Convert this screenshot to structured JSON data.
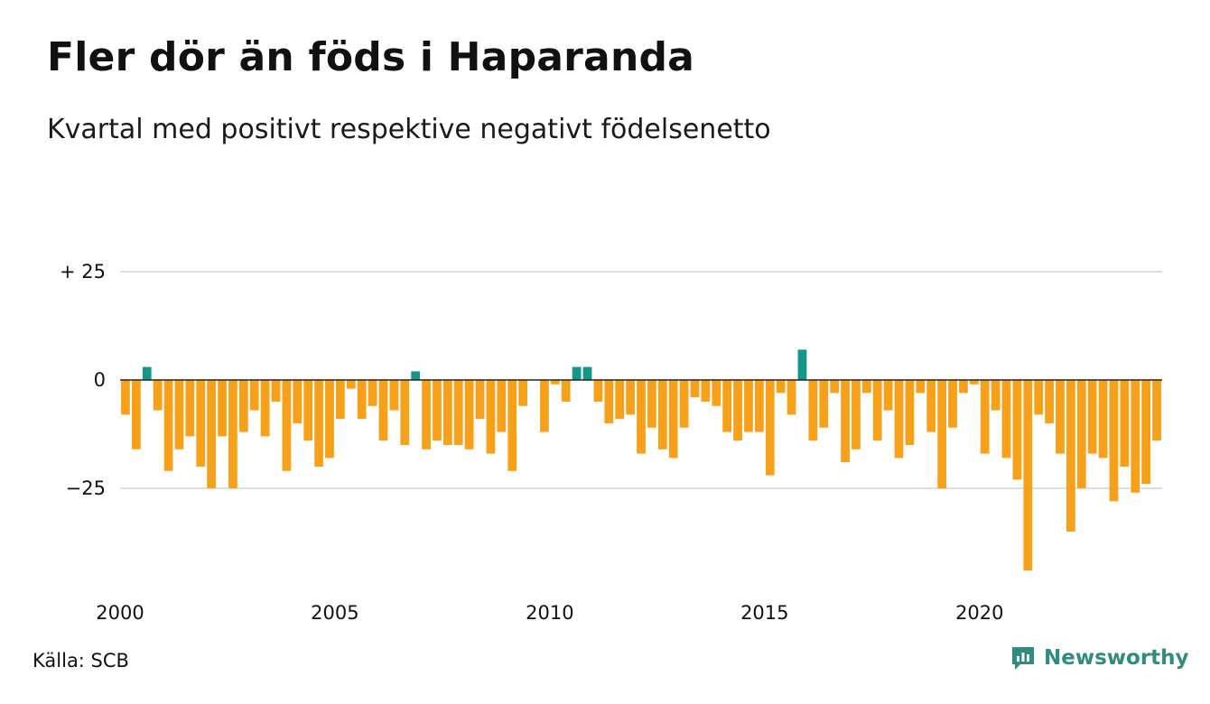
{
  "title": "Fler dör än föds i Haparanda",
  "subtitle": "Kvartal med positivt respektive negativt födelsenetto",
  "source": "Källa: SCB",
  "brand": "Newsworthy",
  "colors": {
    "positive": "#15968a",
    "negative": "#f7a11a",
    "grid": "#dddddd",
    "zero_line": "#222222",
    "brand": "#2f8c7e"
  },
  "chart_data": {
    "type": "bar",
    "title": "Fler dör än föds i Haparanda",
    "subtitle": "Kvartal med positivt respektive negativt födelsenetto",
    "xlabel": "",
    "ylabel": "",
    "y_ticks": [
      {
        "value": 25,
        "label": "+ 25"
      },
      {
        "value": 0,
        "label": "0"
      },
      {
        "value": -25,
        "label": "−25"
      }
    ],
    "x_ticks": [
      "2000",
      "2005",
      "2010",
      "2015",
      "2020"
    ],
    "ylim": [
      -45,
      25
    ],
    "grid": true,
    "start": "2000 Q1",
    "frequency": "quarterly",
    "values": [
      -8,
      -16,
      3,
      -7,
      -21,
      -16,
      -13,
      -20,
      -25,
      -13,
      -25,
      -12,
      -7,
      -13,
      -5,
      -21,
      -10,
      -14,
      -20,
      -18,
      -9,
      -2,
      -9,
      -6,
      -14,
      -7,
      -15,
      2,
      -16,
      -14,
      -15,
      -15,
      -16,
      -9,
      -17,
      -12,
      -21,
      -6,
      0,
      -12,
      -1,
      -5,
      3,
      3,
      -5,
      -10,
      -9,
      -8,
      -17,
      -11,
      -16,
      -18,
      -11,
      -4,
      -5,
      -6,
      -12,
      -14,
      -12,
      -12,
      -22,
      -3,
      -8,
      7,
      -14,
      -11,
      -3,
      -19,
      -16,
      -3,
      -14,
      -7,
      -18,
      -15,
      -3,
      -12,
      -25,
      -11,
      -3,
      -1,
      -17,
      -7,
      -18,
      -23,
      -44,
      -8,
      -10,
      -17,
      -35,
      -25,
      -17,
      -18,
      -28,
      -20,
      -26,
      -24,
      -14
    ]
  }
}
